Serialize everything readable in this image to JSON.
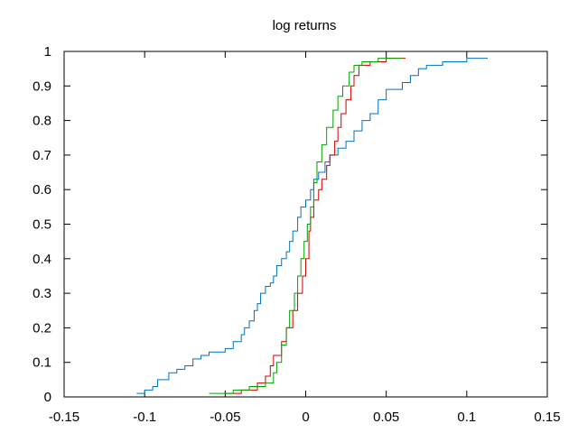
{
  "chart_data": {
    "type": "line",
    "step": true,
    "title": "log returns",
    "xlim": [
      -0.15,
      0.15
    ],
    "xticks": [
      -0.15,
      -0.1,
      -0.05,
      0,
      0.05,
      0.1,
      0.15
    ],
    "ylim": [
      0,
      1
    ],
    "yticks": [
      0,
      0.1,
      0.2,
      0.3,
      0.4,
      0.5,
      0.6,
      0.7,
      0.8,
      0.9,
      1
    ],
    "grid": false,
    "series": [
      {
        "color": "#0072bd",
        "x": [
          -0.105,
          -0.1,
          -0.095,
          -0.092,
          -0.085,
          -0.08,
          -0.075,
          -0.07,
          -0.065,
          -0.06,
          -0.05,
          -0.045,
          -0.04,
          -0.038,
          -0.035,
          -0.032,
          -0.03,
          -0.028,
          -0.025,
          -0.022,
          -0.02,
          -0.018,
          -0.015,
          -0.012,
          -0.01,
          -0.008,
          -0.005,
          -0.003,
          0,
          0.003,
          0.005,
          0.008,
          0.012,
          0.015,
          0.02,
          0.025,
          0.03,
          0.035,
          0.04,
          0.045,
          0.05,
          0.06,
          0.065,
          0.07,
          0.075,
          0.085,
          0.1,
          0.113
        ],
        "values": [
          0.01,
          0.02,
          0.03,
          0.05,
          0.07,
          0.08,
          0.09,
          0.11,
          0.12,
          0.13,
          0.14,
          0.16,
          0.18,
          0.2,
          0.22,
          0.25,
          0.27,
          0.3,
          0.32,
          0.33,
          0.35,
          0.38,
          0.4,
          0.42,
          0.45,
          0.48,
          0.52,
          0.55,
          0.57,
          0.6,
          0.63,
          0.65,
          0.68,
          0.7,
          0.72,
          0.74,
          0.77,
          0.8,
          0.82,
          0.86,
          0.89,
          0.91,
          0.93,
          0.95,
          0.96,
          0.97,
          0.98,
          0.98
        ]
      },
      {
        "color": "#d00000",
        "x": [
          -0.05,
          -0.04,
          -0.03,
          -0.025,
          -0.022,
          -0.02,
          -0.015,
          -0.012,
          -0.008,
          -0.005,
          -0.002,
          0,
          0.002,
          0.003,
          0.005,
          0.008,
          0.01,
          0.013,
          0.015,
          0.018,
          0.02,
          0.022,
          0.025,
          0.028,
          0.03,
          0.033,
          0.04,
          0.05,
          0.062
        ],
        "values": [
          0.01,
          0.02,
          0.04,
          0.06,
          0.09,
          0.12,
          0.16,
          0.2,
          0.25,
          0.3,
          0.35,
          0.4,
          0.48,
          0.52,
          0.57,
          0.6,
          0.63,
          0.67,
          0.7,
          0.74,
          0.78,
          0.82,
          0.86,
          0.9,
          0.93,
          0.96,
          0.97,
          0.98,
          0.98
        ]
      },
      {
        "color": "#00a000",
        "x": [
          -0.06,
          -0.045,
          -0.035,
          -0.025,
          -0.02,
          -0.018,
          -0.015,
          -0.012,
          -0.01,
          -0.007,
          -0.005,
          -0.003,
          -0.001,
          0.001,
          0.003,
          0.005,
          0.007,
          0.01,
          0.013,
          0.017,
          0.02,
          0.023,
          0.027,
          0.03,
          0.035,
          0.045,
          0.06
        ],
        "values": [
          0.01,
          0.02,
          0.03,
          0.04,
          0.07,
          0.1,
          0.15,
          0.2,
          0.25,
          0.3,
          0.35,
          0.4,
          0.45,
          0.5,
          0.55,
          0.62,
          0.68,
          0.73,
          0.78,
          0.83,
          0.87,
          0.9,
          0.94,
          0.96,
          0.97,
          0.98,
          0.98
        ]
      }
    ]
  }
}
